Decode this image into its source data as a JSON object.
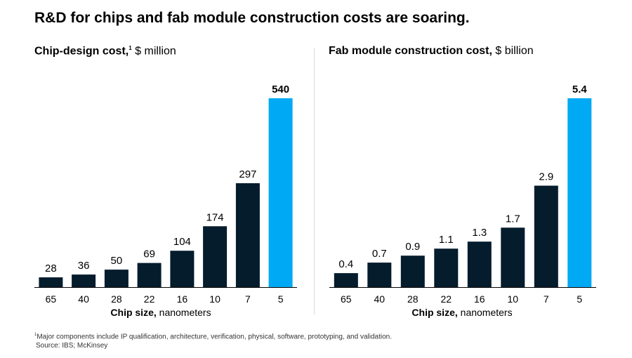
{
  "title": "R&D for chips and fab module construction costs are soaring.",
  "footnote_marker": "1",
  "footnote": "Major components include IP qualification, architecture, verification, physical, software, prototyping, and validation.",
  "source": "Source: IBS; McKinsey",
  "colors": {
    "dark": "#051c2c",
    "highlight": "#00a9f4",
    "axis": "#000000"
  },
  "chart_data": [
    {
      "type": "bar",
      "title_bold": "Chip-design cost,",
      "title_marker": "1",
      "title_unit": "$ million",
      "xlabel_bold": "Chip size,",
      "xlabel_unit": "nanometers",
      "categories": [
        "65",
        "40",
        "28",
        "22",
        "16",
        "10",
        "7",
        "5"
      ],
      "values": [
        28,
        36,
        50,
        69,
        104,
        174,
        297,
        540
      ],
      "labels": [
        "28",
        "36",
        "50",
        "69",
        "104",
        "174",
        "297",
        "540"
      ],
      "highlight_index": 7,
      "ylim": [
        0,
        540
      ]
    },
    {
      "type": "bar",
      "title_bold": "Fab module construction cost,",
      "title_unit": "$ billion",
      "xlabel_bold": "Chip size,",
      "xlabel_unit": "nanometers",
      "categories": [
        "65",
        "40",
        "28",
        "22",
        "16",
        "10",
        "7",
        "5"
      ],
      "values": [
        0.4,
        0.7,
        0.9,
        1.1,
        1.3,
        1.7,
        2.9,
        5.4
      ],
      "labels": [
        "0.4",
        "0.7",
        "0.9",
        "1.1",
        "1.3",
        "1.7",
        "2.9",
        "5.4"
      ],
      "highlight_index": 7,
      "ylim": [
        0,
        5.4
      ]
    }
  ]
}
